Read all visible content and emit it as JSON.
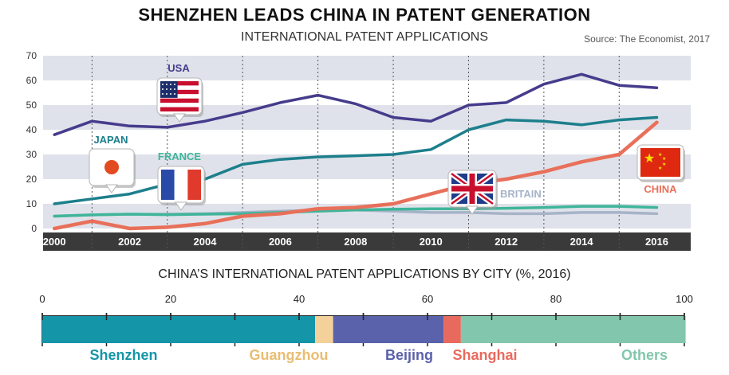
{
  "title": "SHENZHEN LEADS CHINA IN PATENT GENERATION",
  "subtitle": "INTERNATIONAL PATENT APPLICATIONS",
  "source": "Source: The Economist, 2017",
  "chart_data": [
    {
      "type": "line",
      "ylim": [
        0,
        70
      ],
      "yticks": [
        0,
        10,
        20,
        30,
        40,
        50,
        60,
        70
      ],
      "xlim": [
        1999.7,
        2016.9
      ],
      "xtick_labels": [
        "2000",
        "2002",
        "2004",
        "2006",
        "2008",
        "2010",
        "2012",
        "2014",
        "2016"
      ],
      "grid": "horizontal alternating bands",
      "series": [
        {
          "name": "USA",
          "color": "#463c8c",
          "icon": "us-flag-icon",
          "x": [
            2000,
            2001,
            2002,
            2003,
            2004,
            2005,
            2006,
            2007,
            2008,
            2009,
            2010,
            2011,
            2012,
            2013,
            2014,
            2015,
            2016
          ],
          "y": [
            38,
            43.5,
            41.5,
            41,
            43.5,
            47,
            51,
            54,
            50.5,
            45,
            43.5,
            50,
            51,
            58.5,
            62.5,
            58,
            57
          ]
        },
        {
          "name": "JAPAN",
          "color": "#1d7f8c",
          "icon": "japan-flag-icon",
          "x": [
            2000,
            2001,
            2002,
            2003,
            2004,
            2005,
            2006,
            2007,
            2008,
            2009,
            2010,
            2011,
            2012,
            2013,
            2014,
            2015,
            2016
          ],
          "y": [
            10,
            12,
            14,
            18,
            20,
            26,
            28,
            29,
            29.5,
            30,
            32,
            40,
            44,
            43.5,
            42,
            44,
            45
          ]
        },
        {
          "name": "FRANCE",
          "color": "#3fb59a",
          "icon": "france-flag-icon",
          "x": [
            2000,
            2001,
            2002,
            2003,
            2004,
            2005,
            2006,
            2007,
            2008,
            2009,
            2010,
            2011,
            2012,
            2013,
            2014,
            2015,
            2016
          ],
          "y": [
            5,
            5.5,
            5.8,
            5.6,
            5.8,
            6,
            6.5,
            7,
            7.5,
            7.8,
            8,
            8,
            8.2,
            8.5,
            9,
            9,
            8.5
          ]
        },
        {
          "name": "BRITAIN",
          "color": "#a6b3c8",
          "icon": "uk-flag-icon",
          "x": [
            2000,
            2001,
            2002,
            2003,
            2004,
            2005,
            2006,
            2007,
            2008,
            2009,
            2010,
            2011,
            2012,
            2013,
            2014,
            2015,
            2016
          ],
          "y": [
            5,
            5.5,
            5.8,
            5.8,
            6,
            6.5,
            7,
            7.5,
            7.5,
            7,
            6.5,
            6.5,
            6,
            6,
            6.5,
            6.5,
            6
          ]
        },
        {
          "name": "CHINA",
          "color": "#e8705a",
          "icon": "china-flag-icon",
          "x": [
            2000,
            2001,
            2002,
            2003,
            2004,
            2005,
            2006,
            2007,
            2008,
            2009,
            2010,
            2011,
            2012,
            2013,
            2014,
            2015,
            2016
          ],
          "y": [
            0,
            3,
            0,
            0.5,
            2,
            5,
            6,
            8,
            8.5,
            10,
            14,
            18,
            20,
            23,
            27,
            30,
            43
          ]
        }
      ]
    },
    {
      "type": "bar",
      "title": "CHINA’S INTERNATIONAL PATENT APPLICATIONS BY CITY (%, 2016)",
      "stacked": true,
      "orientation": "horizontal",
      "xlim": [
        0,
        100
      ],
      "xticks": [
        0,
        20,
        40,
        60,
        80,
        100
      ],
      "categories": [
        "Shenzhen",
        "Guangzhou",
        "Beijing",
        "Shanghai",
        "Others"
      ],
      "values": [
        42.5,
        2.8,
        17.2,
        2.7,
        35.0
      ],
      "colors": [
        "#1595a8",
        "#f4d19a",
        "#5a62ab",
        "#e86a5e",
        "#82c7ad"
      ]
    }
  ]
}
